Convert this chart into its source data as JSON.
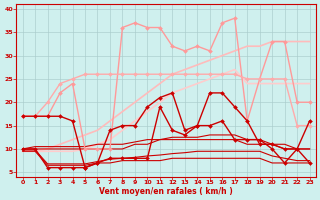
{
  "xlabel": "Vent moyen/en rafales ( km/h )",
  "background_color": "#cff0ee",
  "grid_color": "#aacccc",
  "xlim": [
    -0.5,
    23.5
  ],
  "ylim": [
    4,
    41
  ],
  "yticks": [
    5,
    10,
    15,
    20,
    25,
    30,
    35,
    40
  ],
  "xticks": [
    0,
    1,
    2,
    3,
    4,
    5,
    6,
    7,
    8,
    9,
    10,
    11,
    12,
    13,
    14,
    15,
    16,
    17,
    18,
    19,
    20,
    21,
    22,
    23
  ],
  "x": [
    0,
    1,
    2,
    3,
    4,
    5,
    6,
    7,
    8,
    9,
    10,
    11,
    12,
    13,
    14,
    15,
    16,
    17,
    18,
    19,
    20,
    21,
    22,
    23
  ],
  "lines": [
    {
      "y": [
        9.5,
        9.5,
        10,
        11,
        12,
        13,
        14,
        16,
        18,
        20,
        22,
        24,
        26,
        27,
        28,
        29,
        30,
        31,
        32,
        32,
        33,
        33,
        33,
        33
      ],
      "color": "#ffbbbb",
      "lw": 1.2,
      "marker": null,
      "ms": 0,
      "zorder": 2
    },
    {
      "y": [
        9.5,
        9.5,
        9.5,
        9.5,
        9.5,
        10,
        11,
        12,
        14,
        16,
        18,
        20,
        22,
        23,
        24,
        25,
        26,
        27,
        24,
        24,
        24,
        24,
        24,
        24
      ],
      "color": "#ffcccc",
      "lw": 1.2,
      "marker": null,
      "ms": 0,
      "zorder": 2
    },
    {
      "y": [
        17,
        17,
        17,
        22,
        24,
        10,
        10,
        10,
        36,
        37,
        36,
        36,
        32,
        31,
        32,
        31,
        37,
        38,
        16,
        25,
        33,
        33,
        20,
        20
      ],
      "color": "#ff9999",
      "lw": 1.0,
      "marker": "D",
      "ms": 2.0,
      "zorder": 4
    },
    {
      "y": [
        17,
        17,
        20,
        24,
        25,
        26,
        26,
        26,
        26,
        26,
        26,
        26,
        26,
        26,
        26,
        26,
        26,
        26,
        25,
        25,
        25,
        25,
        15,
        15
      ],
      "color": "#ffaaaa",
      "lw": 1.0,
      "marker": "D",
      "ms": 2.0,
      "zorder": 4
    },
    {
      "y": [
        17,
        17,
        17,
        17,
        16,
        6,
        7,
        14,
        15,
        15,
        19,
        21,
        22,
        14,
        15,
        22,
        22,
        19,
        16,
        11,
        11,
        10,
        10,
        16
      ],
      "color": "#cc0000",
      "lw": 1.0,
      "marker": "D",
      "ms": 2.0,
      "zorder": 6
    },
    {
      "y": [
        10,
        10,
        6,
        6,
        6,
        6,
        7,
        8,
        8,
        8,
        8,
        19,
        14,
        13,
        15,
        15,
        16,
        12,
        12,
        12,
        10,
        7,
        10,
        7
      ],
      "color": "#cc0000",
      "lw": 1.0,
      "marker": "D",
      "ms": 2.0,
      "zorder": 6
    },
    {
      "y": [
        9.5,
        9.5,
        6.5,
        6.5,
        6.5,
        6.5,
        7,
        7,
        7.5,
        7.5,
        7.5,
        7.5,
        8,
        8,
        8,
        8,
        8,
        8,
        8,
        8,
        7,
        7,
        7,
        7
      ],
      "color": "#cc0000",
      "lw": 0.8,
      "marker": null,
      "ms": 0,
      "zorder": 3
    },
    {
      "y": [
        9.8,
        9.8,
        6.8,
        6.8,
        6.8,
        6.8,
        7.3,
        7.8,
        8.0,
        8.2,
        8.5,
        8.7,
        9.0,
        9.2,
        9.5,
        9.5,
        9.5,
        9.5,
        9.5,
        9.5,
        8.5,
        8.0,
        7.5,
        7.5
      ],
      "color": "#cc0000",
      "lw": 0.8,
      "marker": null,
      "ms": 0,
      "zorder": 3
    },
    {
      "y": [
        10,
        10,
        10,
        10,
        10,
        10,
        10,
        10,
        10,
        11,
        11,
        12,
        12,
        12,
        12,
        12,
        12,
        12,
        11,
        11,
        11,
        10,
        10,
        10
      ],
      "color": "#cc0000",
      "lw": 0.8,
      "marker": null,
      "ms": 0,
      "zorder": 3
    },
    {
      "y": [
        10,
        10.5,
        10.5,
        10.5,
        10.5,
        10.5,
        11,
        11,
        11,
        11.5,
        12,
        12,
        12.5,
        12.5,
        12.5,
        13,
        13,
        13,
        12,
        12,
        11,
        11,
        10,
        10
      ],
      "color": "#cc0000",
      "lw": 0.8,
      "marker": null,
      "ms": 0,
      "zorder": 3
    }
  ]
}
